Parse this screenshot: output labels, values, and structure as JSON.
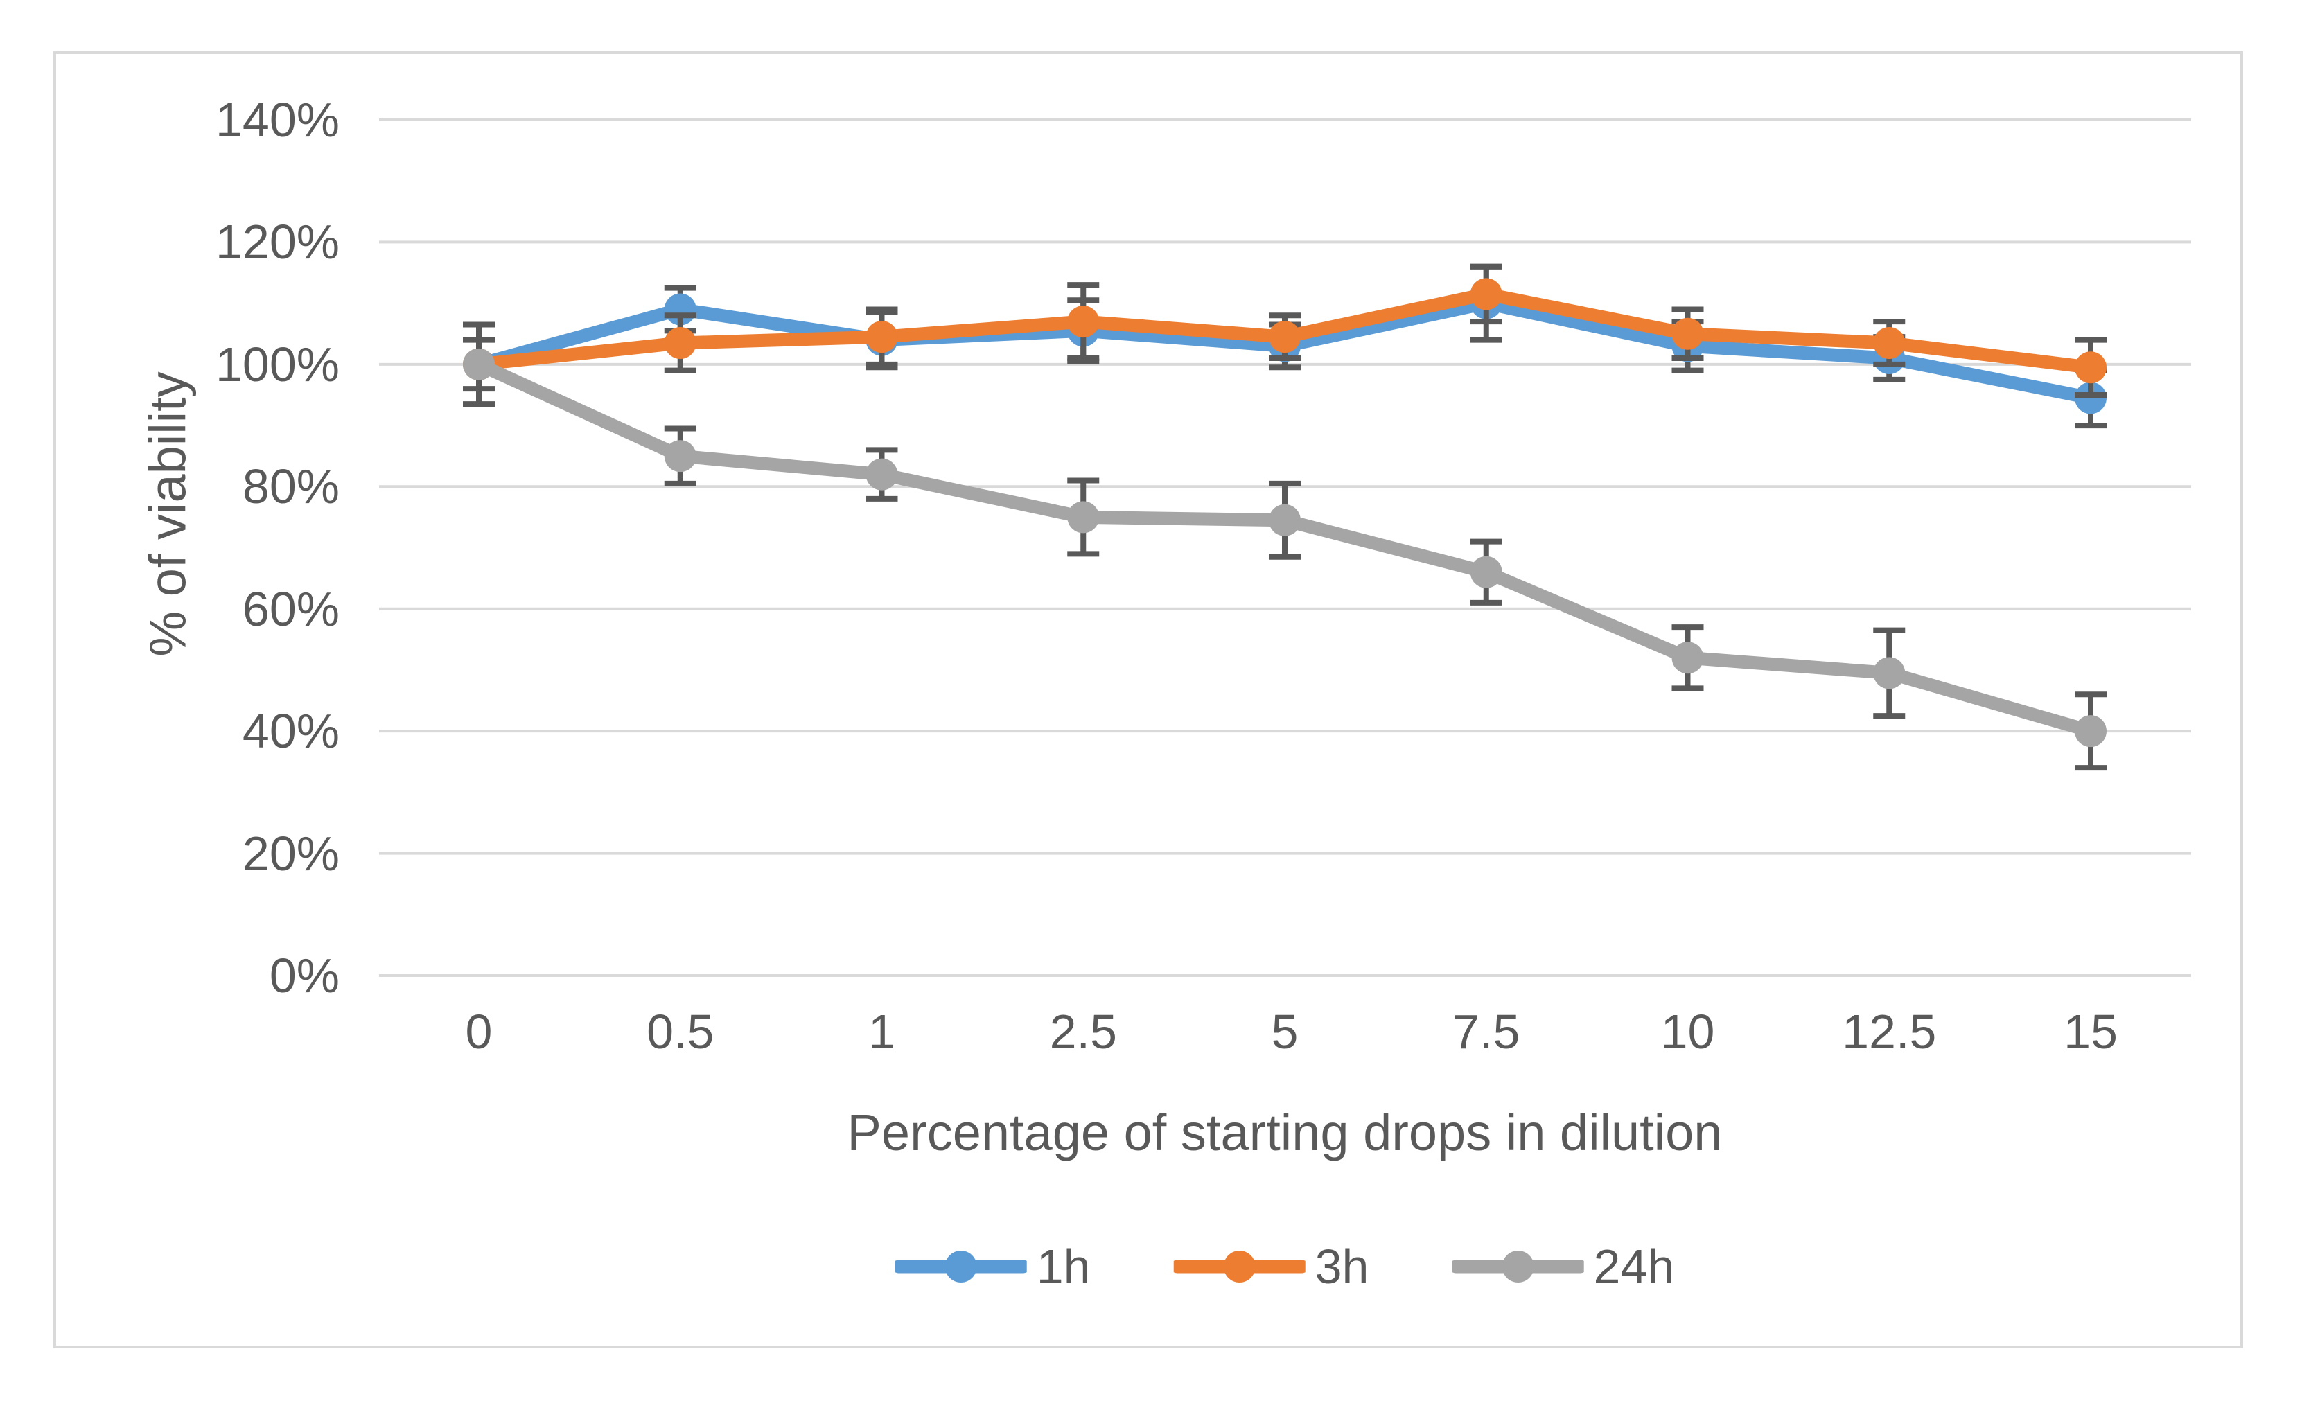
{
  "chart_data": {
    "type": "line",
    "title": "",
    "xlabel": "Percentage of starting drops in dilution",
    "ylabel": "% of viability",
    "x_categories": [
      "0",
      "0.5",
      "1",
      "2.5",
      "5",
      "7.5",
      "10",
      "12.5",
      "15"
    ],
    "y_ticks": [
      "0%",
      "20%",
      "40%",
      "60%",
      "80%",
      "100%",
      "120%",
      "140%"
    ],
    "ylim": [
      0,
      140
    ],
    "y_tick_step": 20,
    "grid": "horizontal-only",
    "legend_position": "bottom-center",
    "series": [
      {
        "name": "1h",
        "color": "#5B9BD5",
        "values": [
          100,
          109,
          104,
          105.5,
          103,
          110,
          103,
          101,
          94.5
        ],
        "errors": [
          6.5,
          3.5,
          4.5,
          5,
          3.5,
          6,
          4,
          3.5,
          4.5
        ]
      },
      {
        "name": "3h",
        "color": "#ED7D31",
        "values": [
          100,
          103.5,
          104.5,
          107,
          104.5,
          111.5,
          105,
          103.5,
          99.5
        ],
        "errors": [
          4,
          4.5,
          4.5,
          6,
          3.5,
          4.5,
          4,
          3.5,
          4.5
        ]
      },
      {
        "name": "24h",
        "color": "#A5A5A5",
        "values": [
          100,
          85,
          82,
          75,
          74.5,
          66,
          52,
          49.5,
          40
        ],
        "errors": [
          6.5,
          4.5,
          4,
          6,
          6,
          5,
          5,
          7,
          6
        ]
      }
    ],
    "error_bar_color": "#595959",
    "gridline_color": "#D9D9D9",
    "border_color": "#D9D9D9",
    "text_color": "#595959",
    "background_color": "#FFFFFF"
  }
}
